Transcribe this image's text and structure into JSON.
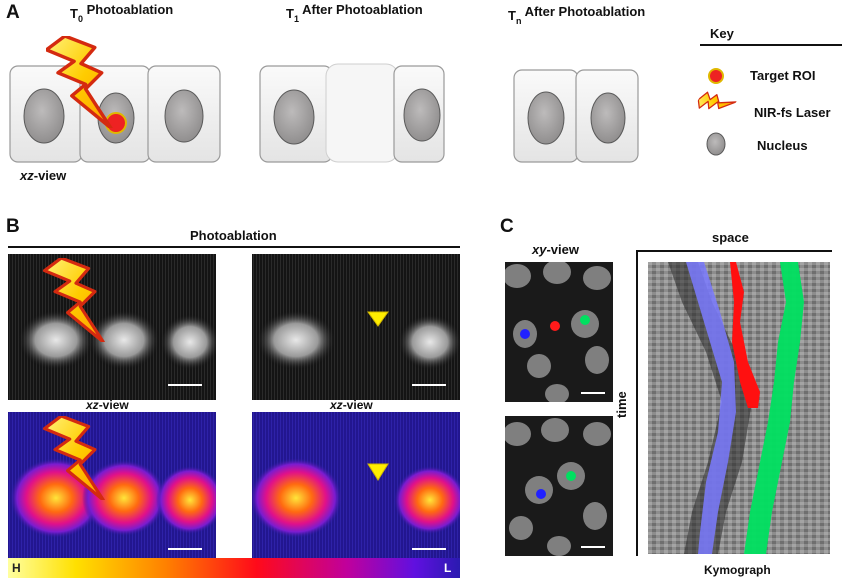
{
  "panel_a": {
    "letter": "A",
    "stages": [
      {
        "t_main": "T",
        "t_sub": "0",
        "title": "Photoablation"
      },
      {
        "t_main": "T",
        "t_sub": "1",
        "title": "After Photoablation"
      },
      {
        "t_main": "T",
        "t_sub": "n",
        "title": "After Photoablation"
      }
    ],
    "view_label_em": "xz",
    "view_label_rest": "-view",
    "key": {
      "title": "Key",
      "items": [
        {
          "icon": "target-roi-icon",
          "label": "Target ROI"
        },
        {
          "icon": "laser-bolt-icon",
          "label": "NIR-fs Laser"
        },
        {
          "icon": "nucleus-icon",
          "label": "Nucleus"
        }
      ]
    }
  },
  "panel_b": {
    "letter": "B",
    "header": "Photoablation",
    "view_label_em": "xz",
    "view_label_rest": "-view",
    "colorbar": {
      "high": "H",
      "low": "L"
    }
  },
  "panel_c": {
    "letter": "C",
    "xy_label_em": "xy",
    "xy_label_rest": "-view",
    "axis_space": "space",
    "axis_time": "time",
    "kymograph_label": "Kymograph"
  },
  "colors": {
    "cell_fill": "#efefef",
    "nucleus": "#a9a7a7",
    "roi_red": "#ee2222",
    "laser_yellow": "#ffd400",
    "arrowhead": "#ffee00",
    "track_blue": "#6f6fff",
    "track_red": "#ff1010",
    "track_green": "#00e064"
  }
}
